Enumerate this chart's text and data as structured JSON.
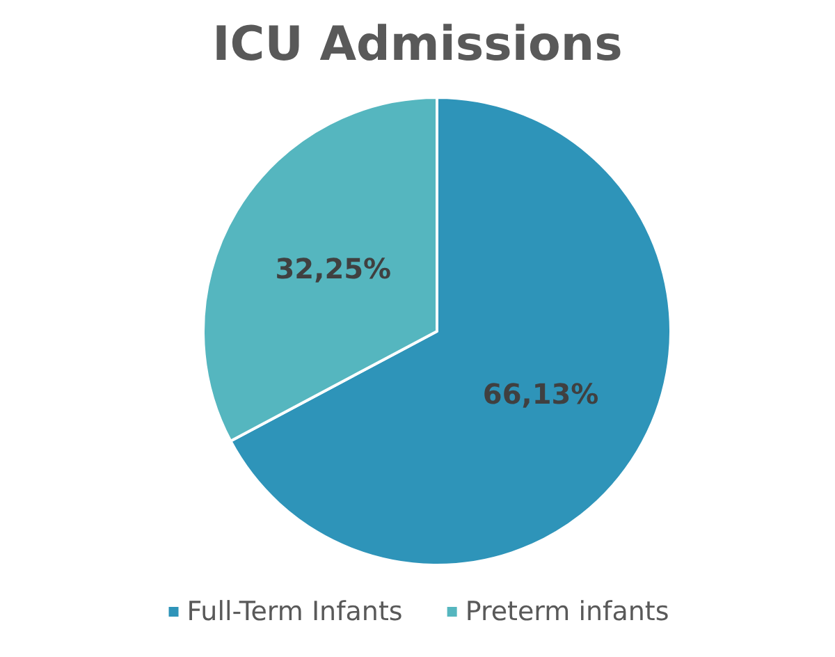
{
  "chart_data": {
    "type": "pie",
    "title": "ICU Admissions",
    "categories": [
      "Full-Term Infants",
      "Preterm infants"
    ],
    "values": [
      66.13,
      32.25
    ],
    "colors": [
      "#2e94b9",
      "#55b6bf"
    ],
    "value_labels": [
      "66,13%",
      "32,25%"
    ],
    "legend": "bottom"
  }
}
